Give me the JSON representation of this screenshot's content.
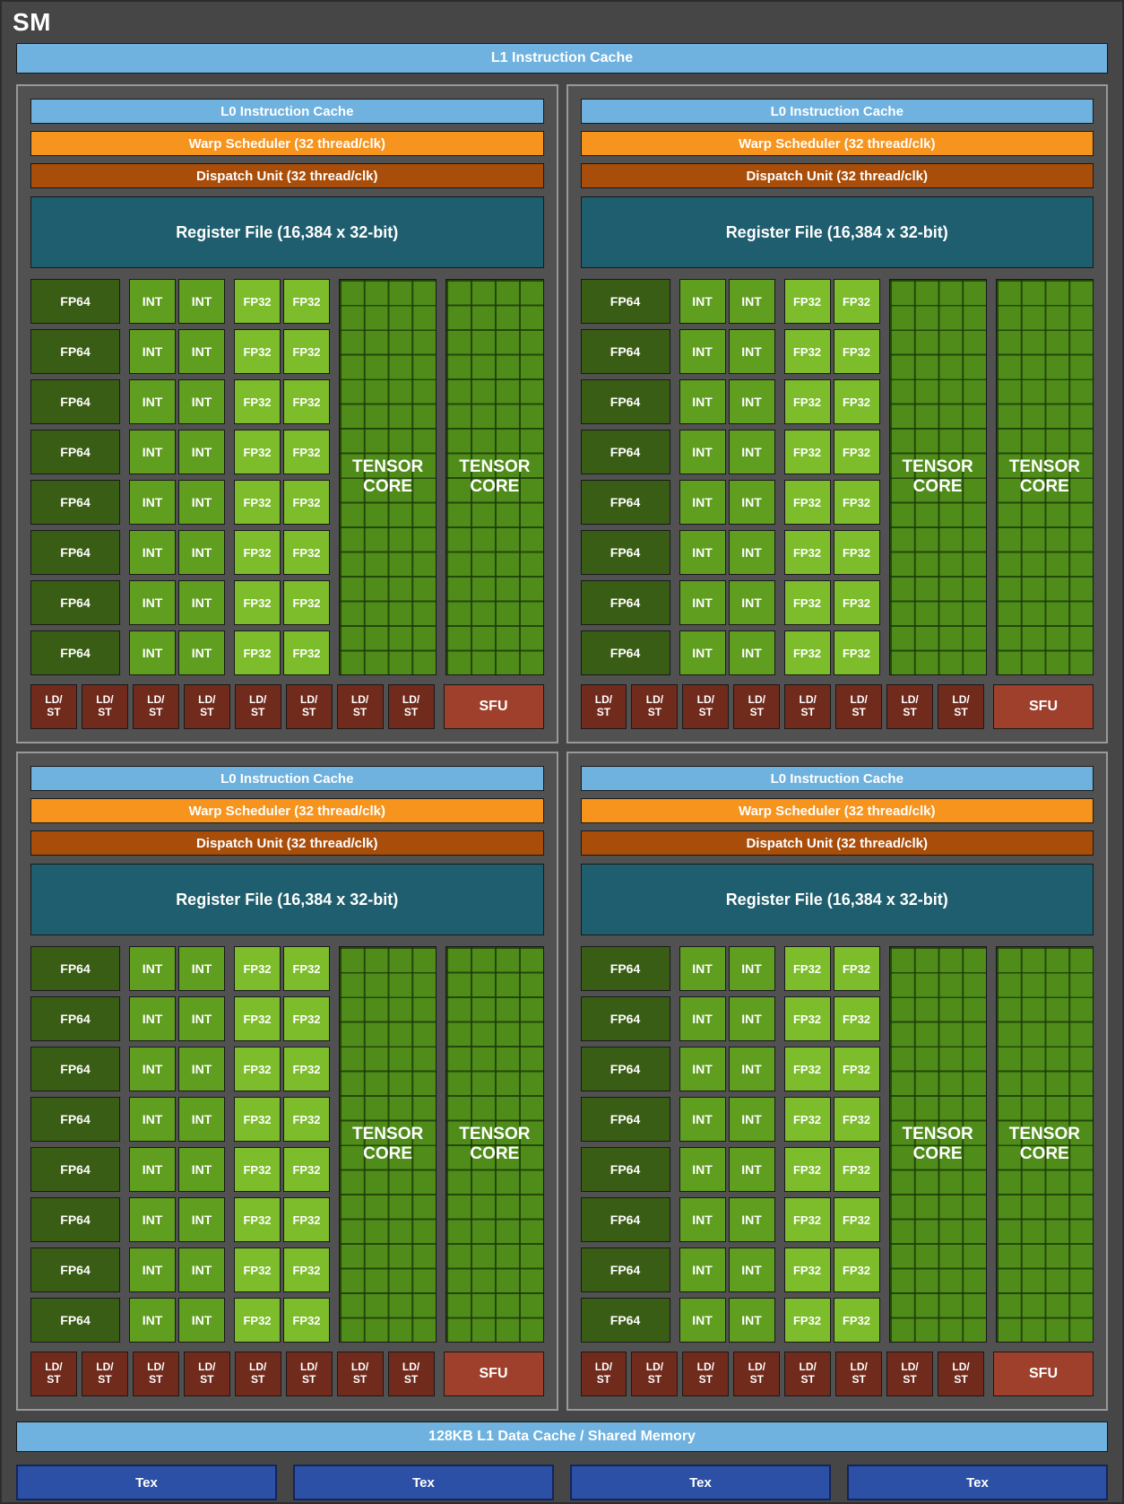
{
  "title": "SM",
  "l1_instruction_cache": "L1 Instruction Cache",
  "l1_data_cache": "128KB L1 Data Cache / Shared Memory",
  "block_count": 4,
  "block": {
    "l0_cache": "L0 Instruction Cache",
    "warp_scheduler": "Warp Scheduler (32 thread/clk)",
    "dispatch_unit": "Dispatch Unit (32 thread/clk)",
    "register_file": "Register File (16,384 x 32-bit)",
    "rows": 8,
    "fp64": "FP64",
    "int": "INT",
    "fp32": "FP32",
    "tensor_core": "TENSOR CORE",
    "ldst": "LD/\nST",
    "ldst_count": 8,
    "sfu": "SFU"
  },
  "tex": {
    "label": "Tex",
    "count": 4
  },
  "colors": {
    "background": "#464646",
    "block_background": "#515151",
    "cache_blue": "#6fb2df",
    "scheduler_orange": "#f7941e",
    "dispatch_orange": "#a94e0a",
    "register_teal": "#1f5e6e",
    "fp64_green": "#3a5d15",
    "int_green": "#5f9e1e",
    "fp32_green": "#7dbd2b",
    "tensor_green": "#4f8c1a",
    "ldst_maroon": "#702b1d",
    "sfu_red": "#9e402c",
    "tex_blue": "#2c50a5"
  }
}
